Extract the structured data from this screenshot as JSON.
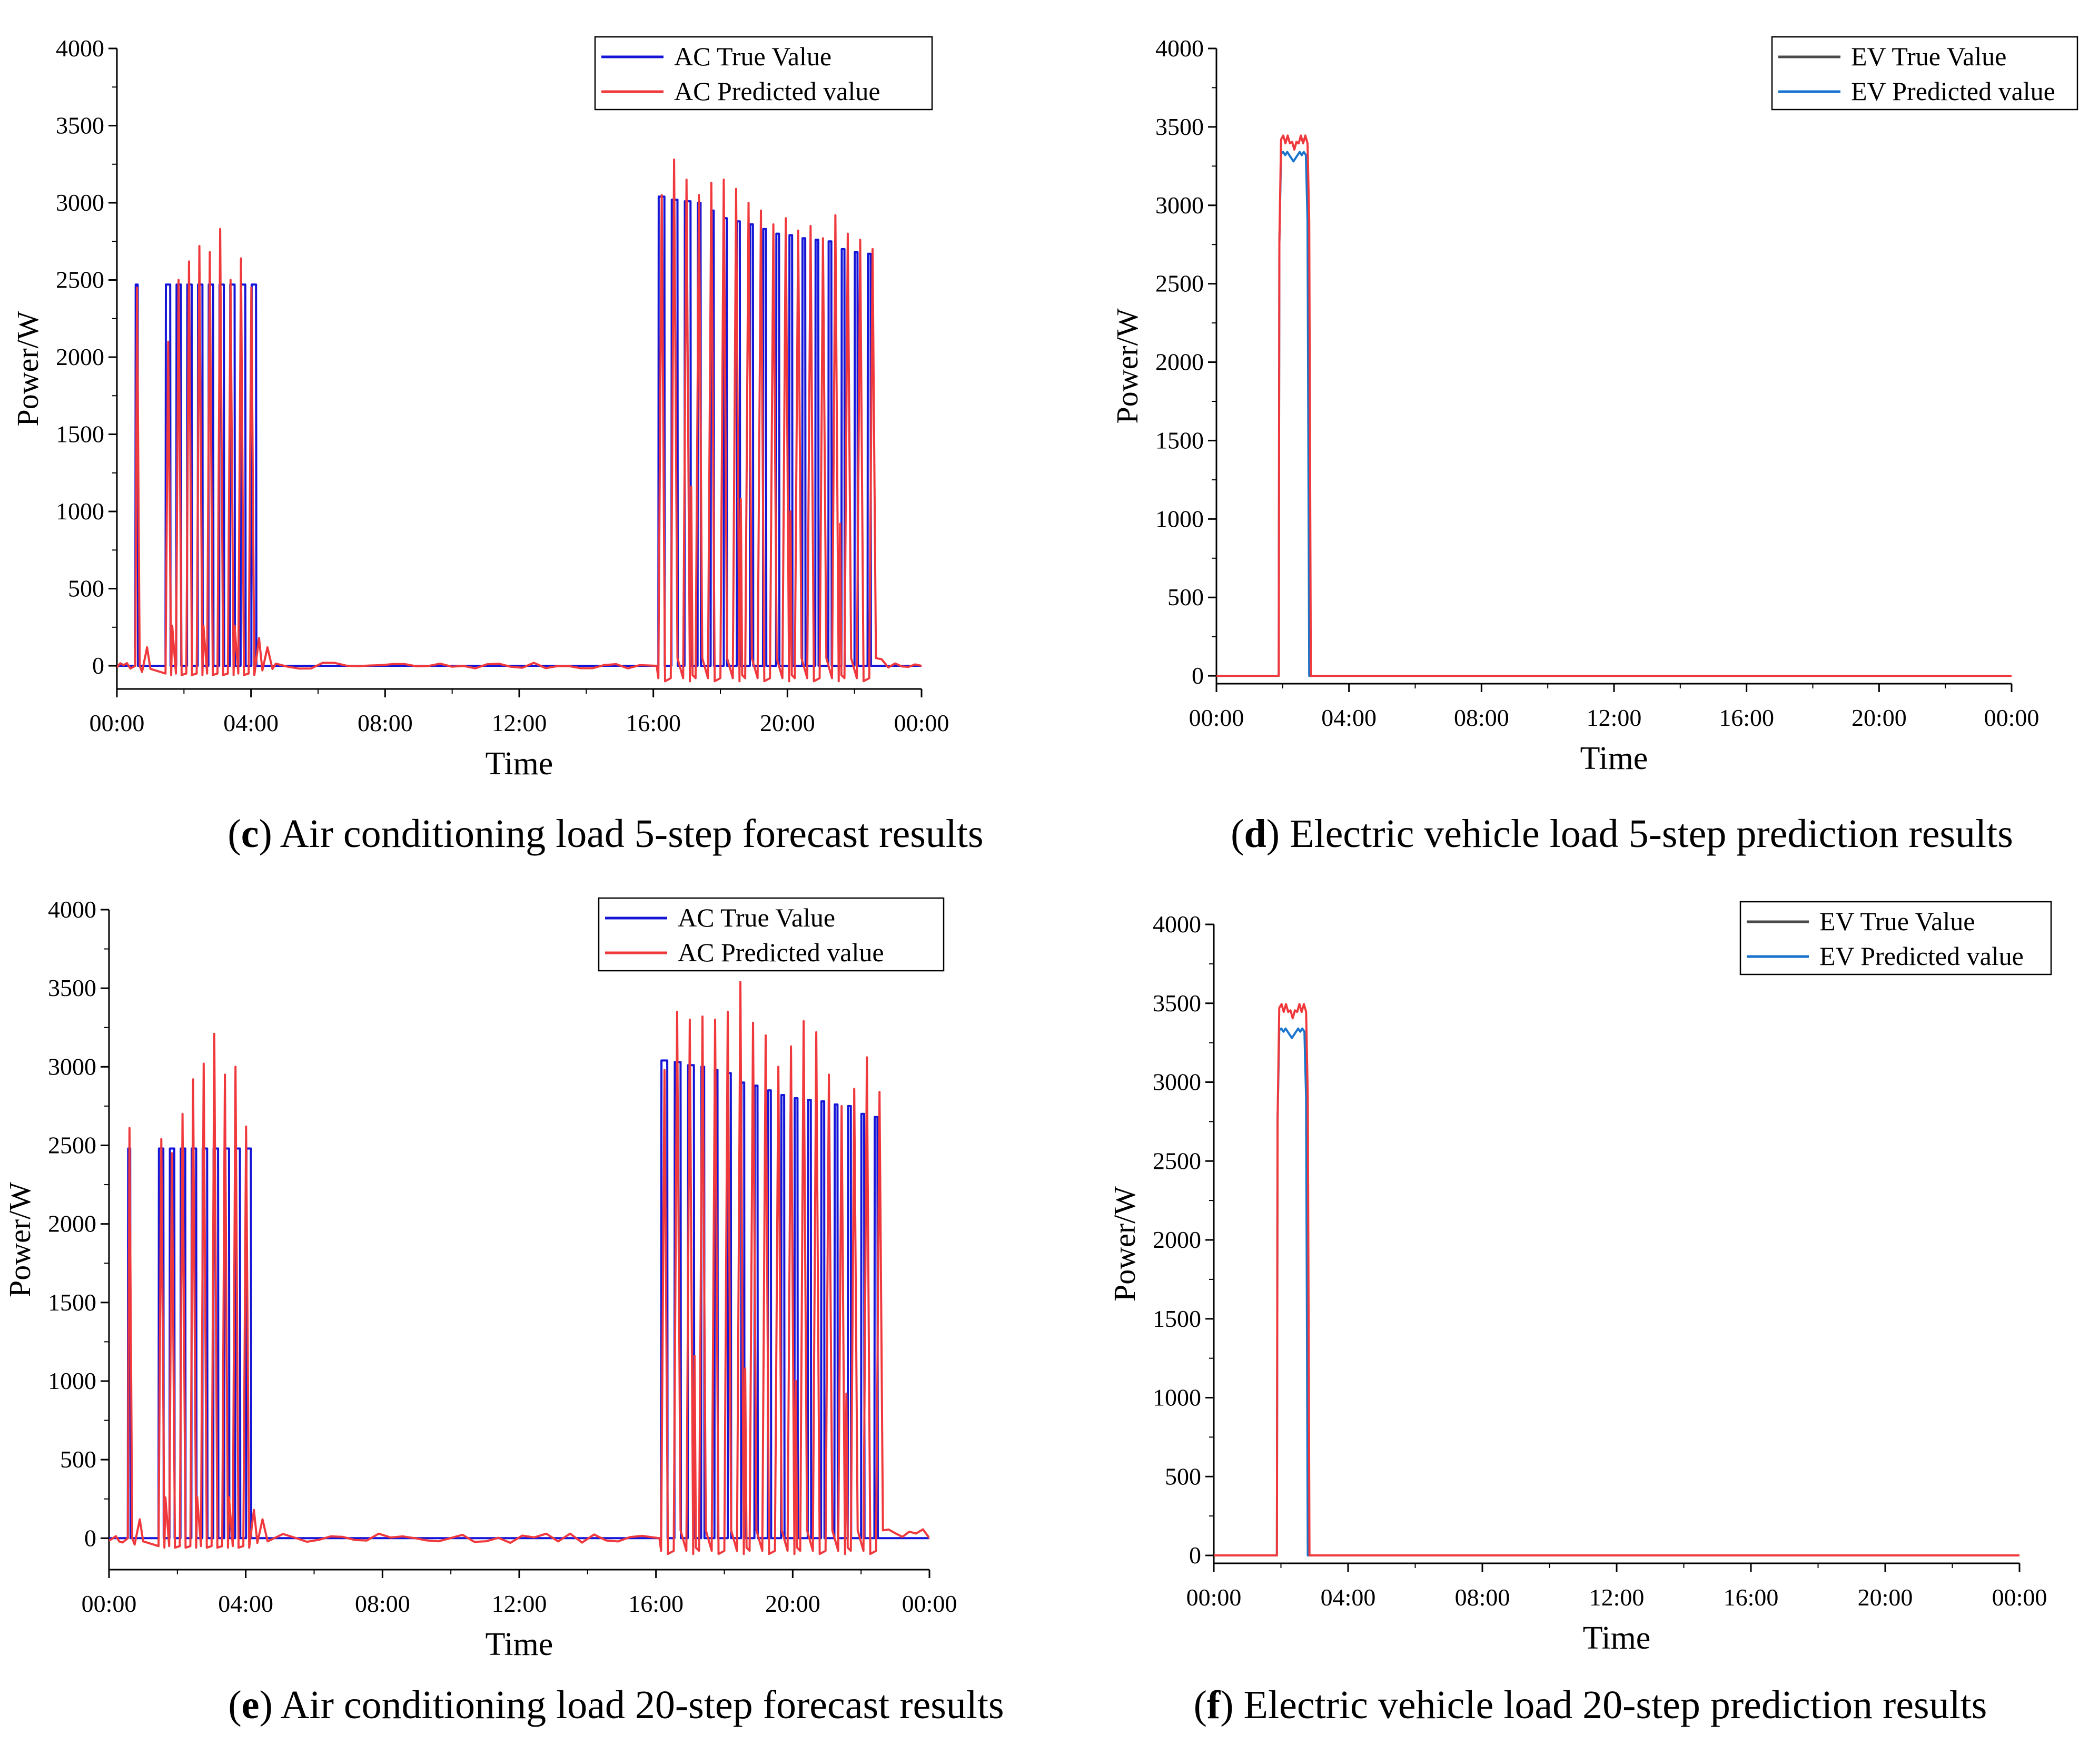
{
  "colors": {
    "ac_true": "#1515d8",
    "ac_pred": "#f0393c",
    "ev_true": "#4a4a4a",
    "ev_pred": "#1874cd",
    "ev_pred_line": "#f0393c",
    "axis": "#000000"
  },
  "chart_data": [
    {
      "id": "c",
      "type": "line",
      "caption_letter": "c",
      "caption_text": "Air conditioning load 5-step forecast results",
      "xlabel": "Time",
      "ylabel": "Power/W",
      "x_ticks": [
        "00:00",
        "04:00",
        "08:00",
        "12:00",
        "16:00",
        "20:00",
        "00:00"
      ],
      "y_ticks": [
        0,
        500,
        1000,
        1500,
        2000,
        2500,
        3000,
        3500,
        4000
      ],
      "xlim": [
        0,
        24
      ],
      "ylim": [
        -150,
        4000
      ],
      "legend_position": "top-right",
      "legend": [
        "AC True Value",
        "AC Predicted value"
      ],
      "series": [
        {
          "name": "AC True Value",
          "color_key": "ac_true",
          "block1_level": 2470,
          "block2_levels": [
            3040,
            3020,
            3010,
            3000,
            2950,
            2900,
            2880,
            2860,
            2830,
            2800,
            2790,
            2770,
            2760,
            2750,
            2700,
            2680,
            2670
          ],
          "spike_level": 2470,
          "last_level": 2680
        },
        {
          "name": "AC Predicted value",
          "color_key": "ac_pred",
          "block1_peaks": [
            2450,
            2100,
            2500,
            2620,
            2720,
            2680,
            2830,
            2500,
            2640,
            2450
          ],
          "block2_peaks": [
            3050,
            3280,
            3150,
            3050,
            3130,
            3150,
            3090,
            3000,
            2950,
            2860,
            2900,
            2820,
            2850,
            2770,
            2920,
            2800,
            2760,
            2700
          ],
          "residual_noise": 40
        }
      ]
    },
    {
      "id": "d",
      "type": "line",
      "caption_letter": "d",
      "caption_text": "Electric vehicle load 5-step prediction results",
      "xlabel": "Time",
      "ylabel": "Power/W",
      "x_ticks": [
        "00:00",
        "04:00",
        "08:00",
        "12:00",
        "16:00",
        "20:00",
        "00:00"
      ],
      "y_ticks": [
        0,
        500,
        1000,
        1500,
        2000,
        2500,
        3000,
        3500,
        4000
      ],
      "xlim": [
        0,
        24
      ],
      "ylim": [
        -50,
        4000
      ],
      "legend_position": "top-right",
      "legend": [
        "EV True Value",
        "EV Predicted value"
      ],
      "series": [
        {
          "name": "EV True Value",
          "color_key": "ev_pred",
          "start": 1.9,
          "end": 2.75,
          "level": 3330
        },
        {
          "name": "EV Predicted value",
          "color_key": "ev_pred_line",
          "start": 1.9,
          "end": 2.8,
          "level": 3420
        }
      ]
    },
    {
      "id": "e",
      "type": "line",
      "caption_letter": "e",
      "caption_text": "Air conditioning load 20-step forecast results",
      "xlabel": "Time",
      "ylabel": "Power/W",
      "x_ticks": [
        "00:00",
        "04:00",
        "08:00",
        "12:00",
        "16:00",
        "20:00",
        "00:00"
      ],
      "y_ticks": [
        0,
        500,
        1000,
        1500,
        2000,
        2500,
        3000,
        3500,
        4000
      ],
      "xlim": [
        0,
        24
      ],
      "ylim": [
        -200,
        4000
      ],
      "legend_position": "top-right",
      "legend": [
        "AC True Value",
        "AC Predicted value"
      ],
      "series": [
        {
          "name": "AC True Value",
          "color_key": "ac_true",
          "block1_level": 2480,
          "block2_levels": [
            3040,
            3030,
            3010,
            3000,
            2980,
            2960,
            2900,
            2880,
            2850,
            2820,
            2800,
            2790,
            2780,
            2760,
            2750,
            2700,
            2680
          ],
          "last_level": 2680
        },
        {
          "name": "AC Predicted value",
          "color_key": "ac_pred",
          "block1_peaks": [
            2610,
            2540,
            2450,
            2700,
            2920,
            3020,
            3210,
            2950,
            3000,
            2620
          ],
          "block2_peaks": [
            2980,
            3350,
            3300,
            3320,
            3300,
            3350,
            3540,
            3280,
            3200,
            3000,
            3130,
            3290,
            3220,
            2950,
            2750,
            2860,
            3060,
            2840
          ],
          "residual_noise": 60
        }
      ]
    },
    {
      "id": "f",
      "type": "line",
      "caption_letter": "f",
      "caption_text": "Electric vehicle load 20-step prediction results",
      "xlabel": "Time",
      "ylabel": "Power/W",
      "x_ticks": [
        "00:00",
        "04:00",
        "08:00",
        "12:00",
        "16:00",
        "20:00",
        "00:00"
      ],
      "y_ticks": [
        0,
        500,
        1000,
        1500,
        2000,
        2500,
        3000,
        3500,
        4000
      ],
      "xlim": [
        0,
        24
      ],
      "ylim": [
        -50,
        4000
      ],
      "legend_position": "top-right",
      "legend": [
        "EV True Value",
        "EV Predicted value"
      ],
      "series": [
        {
          "name": "EV True Value",
          "color_key": "ev_pred",
          "start": 1.9,
          "end": 2.75,
          "level": 3330
        },
        {
          "name": "EV Predicted value",
          "color_key": "ev_pred_line",
          "start": 1.9,
          "end": 2.8,
          "level": 3470
        }
      ]
    }
  ]
}
